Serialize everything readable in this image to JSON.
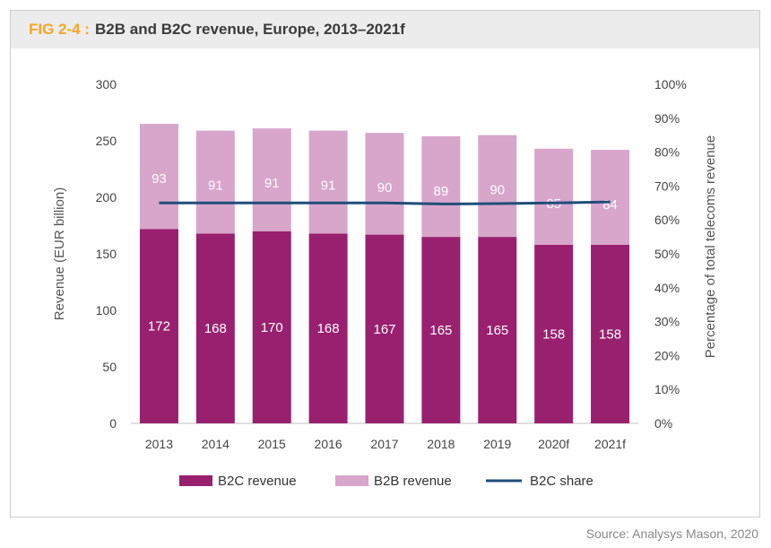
{
  "figure": {
    "label": "FIG 2-4 :",
    "title": "B2B and B2C revenue, Europe, 2013–2021f"
  },
  "colors": {
    "b2c": "#99206f",
    "b2b": "#d8a5cb",
    "share": "#1f4e79",
    "fig_label": "#f5a623"
  },
  "chart_data": {
    "type": "bar",
    "stacked": true,
    "categories": [
      "2013",
      "2014",
      "2015",
      "2016",
      "2017",
      "2018",
      "2019",
      "2020f",
      "2021f"
    ],
    "series": [
      {
        "name": "B2C revenue",
        "type": "bar",
        "axis": "left",
        "color": "#99206f",
        "values": [
          172,
          168,
          170,
          168,
          167,
          165,
          165,
          158,
          158
        ]
      },
      {
        "name": "B2B revenue",
        "type": "bar",
        "axis": "left",
        "color": "#d8a5cb",
        "values": [
          93,
          91,
          91,
          91,
          90,
          89,
          90,
          85,
          84
        ]
      },
      {
        "name": "B2C share",
        "type": "line",
        "axis": "right",
        "color": "#1f4e79",
        "values": [
          65,
          65,
          65,
          65,
          65,
          64.7,
          64.8,
          65,
          65.3
        ]
      }
    ],
    "ylabel": "Revenue (EUR billion)",
    "ylim": [
      0,
      300
    ],
    "yticks": [
      "0",
      "50",
      "100",
      "150",
      "200",
      "250",
      "300"
    ],
    "ylabel_right": "Percentage of total telecoms revenue",
    "ylim_right": [
      0,
      100
    ],
    "yticks_right": [
      "0%",
      "10%",
      "20%",
      "30%",
      "40%",
      "50%",
      "60%",
      "70%",
      "80%",
      "90%",
      "100%"
    ],
    "legend_position": "bottom",
    "grid": false
  },
  "source": "Source: Analysys Mason, 2020"
}
